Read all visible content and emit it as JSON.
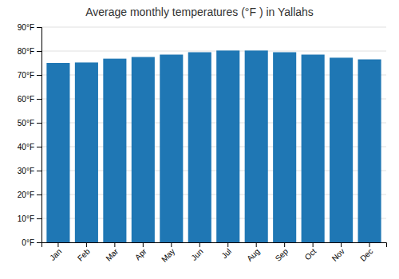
{
  "chart_data": {
    "type": "bar",
    "title": "Average monthly temperatures (°F ) in Yallahs",
    "categories": [
      "Jan",
      "Feb",
      "Mar",
      "Apr",
      "May",
      "Jun",
      "Jul",
      "Aug",
      "Sep",
      "Oct",
      "Nov",
      "Dec"
    ],
    "values": [
      75,
      75.2,
      76.8,
      77.5,
      78.5,
      79.5,
      80.2,
      80.2,
      79.5,
      78.5,
      77.2,
      76.5
    ],
    "ylim": [
      0,
      90
    ],
    "yticks": [
      {
        "value": 0,
        "label": "0°F"
      },
      {
        "value": 10,
        "label": "10°F"
      },
      {
        "value": 20,
        "label": "20°F"
      },
      {
        "value": 30,
        "label": "30°F"
      },
      {
        "value": 40,
        "label": "40°F"
      },
      {
        "value": 50,
        "label": "50°F"
      },
      {
        "value": 60,
        "label": "60°F"
      },
      {
        "value": 70,
        "label": "70°F"
      },
      {
        "value": 80,
        "label": "80°F"
      },
      {
        "value": 90,
        "label": "90°F"
      }
    ],
    "grid": true
  }
}
